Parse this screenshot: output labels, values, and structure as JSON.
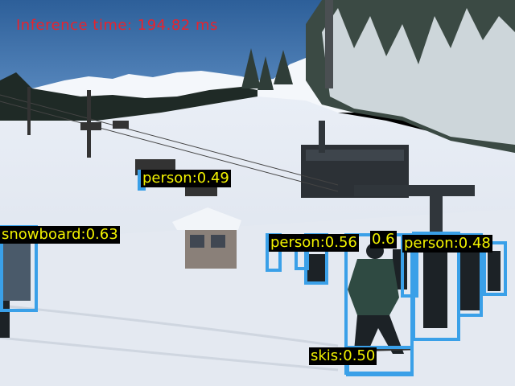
{
  "overlay": {
    "inference_text": "Inference time: 194.82 ms",
    "inference_color": "#e8232d"
  },
  "colors": {
    "box_border": "#3aa0e8",
    "label_bg": "#000000",
    "label_text": "#f2f200"
  },
  "detections": [
    {
      "label": "person:0.49"
    },
    {
      "label": "snowboard:0.63"
    },
    {
      "label": "person:0.56"
    },
    {
      "label": "0.6"
    },
    {
      "label": "person:0.48"
    },
    {
      "label": "skis:0.50"
    }
  ]
}
